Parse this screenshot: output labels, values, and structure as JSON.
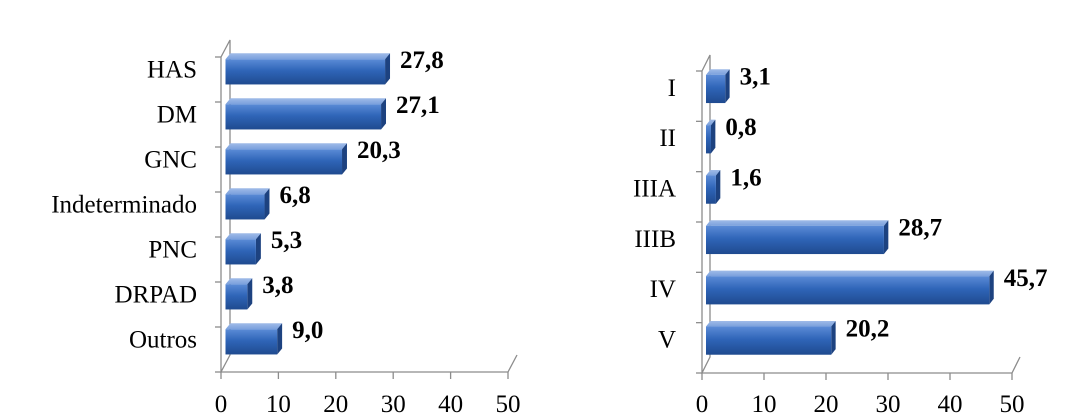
{
  "chart_data": [
    {
      "type": "bar",
      "orientation": "horizontal",
      "categories": [
        "HAS",
        "DM",
        "GNC",
        "Indeterminado",
        "PNC",
        "DRPAD",
        "Outros"
      ],
      "values": [
        27.8,
        27.1,
        20.3,
        6.8,
        5.3,
        3.8,
        9.0
      ],
      "value_labels": [
        "27,8",
        "27,1",
        "20,3",
        "6,8",
        "5,3",
        "3,8",
        "9,0"
      ],
      "xlim": [
        0,
        50
      ],
      "xticks": [
        "0",
        "10",
        "20",
        "30",
        "40",
        "50"
      ],
      "grid": false,
      "color": "#2f65b8"
    },
    {
      "type": "bar",
      "orientation": "horizontal",
      "categories": [
        "I",
        "II",
        "IIIA",
        "IIIB",
        "IV",
        "V"
      ],
      "values": [
        3.1,
        0.8,
        1.6,
        28.7,
        45.7,
        20.2
      ],
      "value_labels": [
        "3,1",
        "0,8",
        "1,6",
        "28,7",
        "45,7",
        "20,2"
      ],
      "xlim": [
        0,
        50
      ],
      "xticks": [
        "0",
        "10",
        "20",
        "30",
        "40",
        "50"
      ],
      "grid": false,
      "color": "#2f65b8"
    }
  ]
}
